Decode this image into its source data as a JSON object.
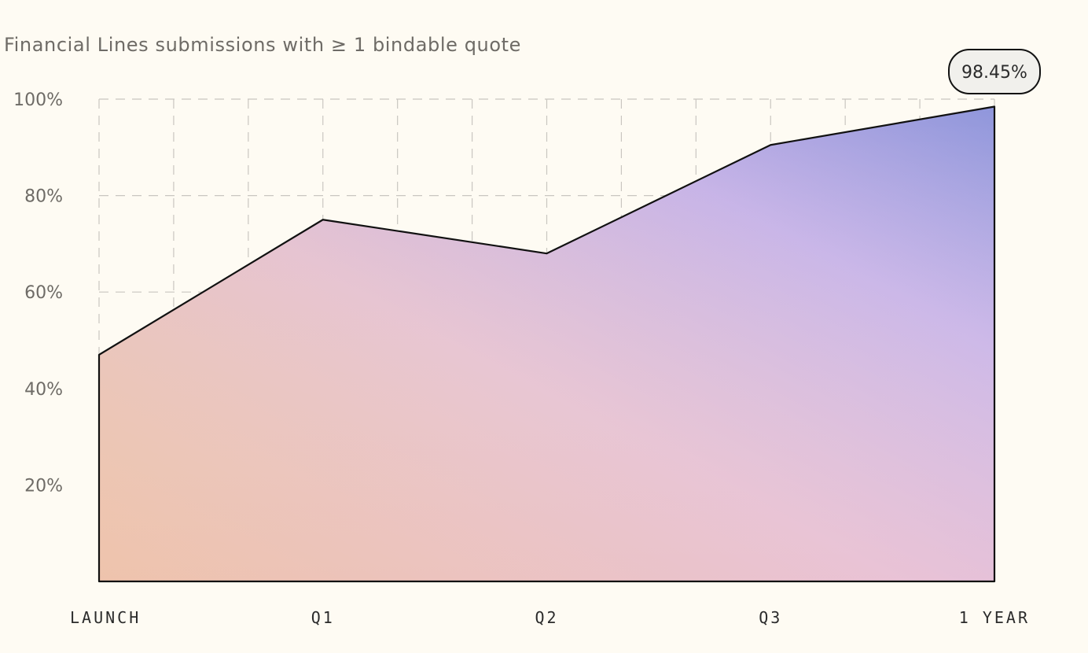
{
  "chart_data": {
    "type": "area",
    "title": "Financial Lines submissions with ≥ 1 bindable quote",
    "categories": [
      "LAUNCH",
      "Q1",
      "Q2",
      "Q3",
      "1 YEAR"
    ],
    "series": [
      {
        "values": [
          47,
          75,
          68,
          90.5,
          98.45
        ]
      }
    ],
    "ylim": [
      0,
      100
    ],
    "yticks": [
      20,
      40,
      60,
      80,
      100
    ],
    "ytick_labels": [
      "20%",
      "40%",
      "60%",
      "80%",
      "100%"
    ],
    "grid": true,
    "annotation": {
      "label": "98.45%",
      "value": 98.45
    },
    "colors": {
      "gradient_bottom_left": "#ecc08c",
      "gradient_mid": "#e4bfd0",
      "gradient_top_right": "#8f96db",
      "outline": "#111111",
      "background": "#fefbf3"
    }
  }
}
